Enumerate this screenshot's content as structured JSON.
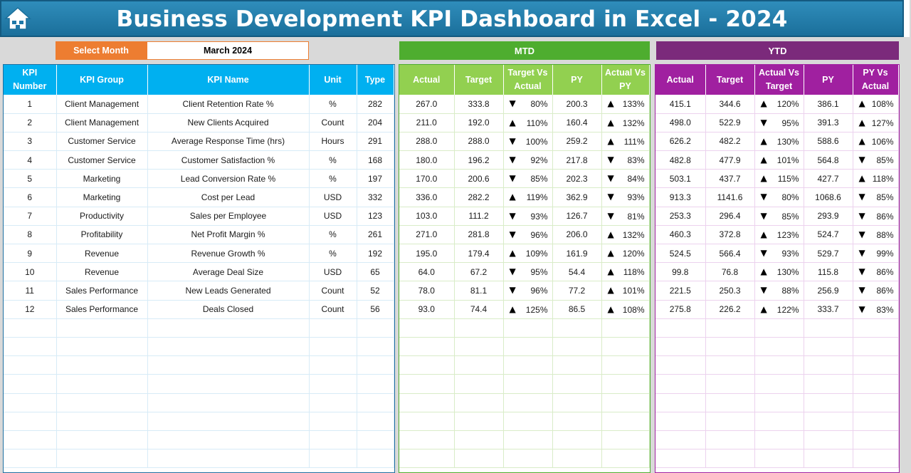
{
  "title": "Business Development KPI Dashboard in Excel - 2024",
  "select_month": {
    "label": "Select Month",
    "value": "March 2024"
  },
  "sections": {
    "mtd": "MTD",
    "ytd": "YTD"
  },
  "colors": {
    "title_bar": "#1f78a8",
    "accent_orange": "#ed7d31",
    "kpi_header": "#00b0f0",
    "mtd_header": "#92d050",
    "mtd_title": "#4ead2f",
    "ytd_header": "#a020a0",
    "ytd_title": "#7b2a7b"
  },
  "kpi_columns": [
    "KPI Number",
    "KPI Group",
    "KPI Name",
    "Unit",
    "Type"
  ],
  "mtd_columns": [
    "Actual",
    "Target",
    "Target Vs Actual",
    "PY",
    "Actual Vs PY"
  ],
  "ytd_columns": [
    "Actual",
    "Target",
    "Actual Vs Target",
    "PY",
    "PY Vs Actual"
  ],
  "rows": [
    {
      "num": "1",
      "group": "Client Management",
      "name": "Client Retention Rate %",
      "unit": "%",
      "type": "282",
      "mtd": {
        "actual": "267.0",
        "target": "333.8",
        "tva_icon": "down",
        "tva": "80%",
        "py": "200.3",
        "avp_icon": "up",
        "avp": "133%"
      },
      "ytd": {
        "actual": "415.1",
        "target": "344.6",
        "avt_icon": "up",
        "avt": "120%",
        "py": "386.1",
        "pva_icon": "up",
        "pva": "108%"
      }
    },
    {
      "num": "2",
      "group": "Client Management",
      "name": "New Clients Acquired",
      "unit": "Count",
      "type": "204",
      "mtd": {
        "actual": "211.0",
        "target": "192.0",
        "tva_icon": "up",
        "tva": "110%",
        "py": "160.4",
        "avp_icon": "up",
        "avp": "132%"
      },
      "ytd": {
        "actual": "498.0",
        "target": "522.9",
        "avt_icon": "down",
        "avt": "95%",
        "py": "391.3",
        "pva_icon": "up",
        "pva": "127%"
      }
    },
    {
      "num": "3",
      "group": "Customer Service",
      "name": "Average Response Time (hrs)",
      "unit": "Hours",
      "type": "291",
      "mtd": {
        "actual": "288.0",
        "target": "288.0",
        "tva_icon": "down",
        "tva": "100%",
        "py": "259.2",
        "avp_icon": "up",
        "avp": "111%"
      },
      "ytd": {
        "actual": "626.2",
        "target": "482.2",
        "avt_icon": "up",
        "avt": "130%",
        "py": "588.6",
        "pva_icon": "up",
        "pva": "106%"
      }
    },
    {
      "num": "4",
      "group": "Customer Service",
      "name": "Customer Satisfaction %",
      "unit": "%",
      "type": "168",
      "mtd": {
        "actual": "180.0",
        "target": "196.2",
        "tva_icon": "down",
        "tva": "92%",
        "py": "217.8",
        "avp_icon": "down",
        "avp": "83%"
      },
      "ytd": {
        "actual": "482.8",
        "target": "477.9",
        "avt_icon": "up",
        "avt": "101%",
        "py": "564.8",
        "pva_icon": "down",
        "pva": "85%"
      }
    },
    {
      "num": "5",
      "group": "Marketing",
      "name": "Lead Conversion Rate %",
      "unit": "%",
      "type": "197",
      "mtd": {
        "actual": "170.0",
        "target": "200.6",
        "tva_icon": "down",
        "tva": "85%",
        "py": "202.3",
        "avp_icon": "down",
        "avp": "84%"
      },
      "ytd": {
        "actual": "503.1",
        "target": "437.7",
        "avt_icon": "up",
        "avt": "115%",
        "py": "427.7",
        "pva_icon": "up",
        "pva": "118%"
      }
    },
    {
      "num": "6",
      "group": "Marketing",
      "name": "Cost per Lead",
      "unit": "USD",
      "type": "332",
      "mtd": {
        "actual": "336.0",
        "target": "282.2",
        "tva_icon": "up",
        "tva": "119%",
        "py": "362.9",
        "avp_icon": "down",
        "avp": "93%"
      },
      "ytd": {
        "actual": "913.3",
        "target": "1141.6",
        "avt_icon": "down",
        "avt": "80%",
        "py": "1068.6",
        "pva_icon": "down",
        "pva": "85%"
      }
    },
    {
      "num": "7",
      "group": "Productivity",
      "name": "Sales per Employee",
      "unit": "USD",
      "type": "123",
      "mtd": {
        "actual": "103.0",
        "target": "111.2",
        "tva_icon": "down",
        "tva": "93%",
        "py": "126.7",
        "avp_icon": "down",
        "avp": "81%"
      },
      "ytd": {
        "actual": "253.3",
        "target": "296.4",
        "avt_icon": "down",
        "avt": "85%",
        "py": "293.9",
        "pva_icon": "down",
        "pva": "86%"
      }
    },
    {
      "num": "8",
      "group": "Profitability",
      "name": "Net Profit Margin %",
      "unit": "%",
      "type": "261",
      "mtd": {
        "actual": "271.0",
        "target": "281.8",
        "tva_icon": "down",
        "tva": "96%",
        "py": "206.0",
        "avp_icon": "up",
        "avp": "132%"
      },
      "ytd": {
        "actual": "460.3",
        "target": "372.8",
        "avt_icon": "up",
        "avt": "123%",
        "py": "524.7",
        "pva_icon": "down",
        "pva": "88%"
      }
    },
    {
      "num": "9",
      "group": "Revenue",
      "name": "Revenue Growth %",
      "unit": "%",
      "type": "192",
      "mtd": {
        "actual": "195.0",
        "target": "179.4",
        "tva_icon": "up",
        "tva": "109%",
        "py": "161.9",
        "avp_icon": "up",
        "avp": "120%"
      },
      "ytd": {
        "actual": "524.5",
        "target": "566.4",
        "avt_icon": "down",
        "avt": "93%",
        "py": "529.7",
        "pva_icon": "down",
        "pva": "99%"
      }
    },
    {
      "num": "10",
      "group": "Revenue",
      "name": "Average Deal Size",
      "unit": "USD",
      "type": "65",
      "mtd": {
        "actual": "64.0",
        "target": "67.2",
        "tva_icon": "down",
        "tva": "95%",
        "py": "54.4",
        "avp_icon": "up",
        "avp": "118%"
      },
      "ytd": {
        "actual": "99.8",
        "target": "76.8",
        "avt_icon": "up",
        "avt": "130%",
        "py": "115.8",
        "pva_icon": "down",
        "pva": "86%"
      }
    },
    {
      "num": "11",
      "group": "Sales Performance",
      "name": "New Leads Generated",
      "unit": "Count",
      "type": "52",
      "mtd": {
        "actual": "78.0",
        "target": "81.1",
        "tva_icon": "down",
        "tva": "96%",
        "py": "77.2",
        "avp_icon": "up",
        "avp": "101%"
      },
      "ytd": {
        "actual": "221.5",
        "target": "250.3",
        "avt_icon": "down",
        "avt": "88%",
        "py": "256.9",
        "pva_icon": "down",
        "pva": "86%"
      }
    },
    {
      "num": "12",
      "group": "Sales Performance",
      "name": "Deals Closed",
      "unit": "Count",
      "type": "56",
      "mtd": {
        "actual": "93.0",
        "target": "74.4",
        "tva_icon": "up",
        "tva": "125%",
        "py": "86.5",
        "avp_icon": "up",
        "avp": "108%"
      },
      "ytd": {
        "actual": "275.8",
        "target": "226.2",
        "avt_icon": "up",
        "avt": "122%",
        "py": "333.7",
        "pva_icon": "down",
        "pva": "83%"
      }
    }
  ]
}
